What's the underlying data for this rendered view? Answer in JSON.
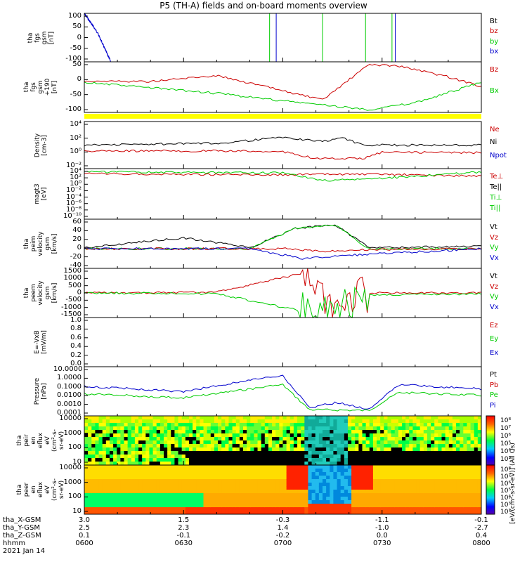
{
  "title": "P5 (TH-A) fields and on-board moments overview",
  "panels": [
    {
      "id": "fgs",
      "ylabel": [
        "tha",
        "fgs",
        "gsm",
        "[nT]"
      ],
      "yticks": [
        "100",
        "50",
        "0",
        "-50",
        "-100"
      ],
      "legend": [
        {
          "label": "Bt",
          "color": "#000000"
        },
        {
          "label": "bz",
          "color": "#cc0000"
        },
        {
          "label": "by",
          "color": "#00cc00"
        },
        {
          "label": "bx",
          "color": "#0000cc"
        }
      ]
    },
    {
      "id": "fgs-recent",
      "ylabel": [
        "tha",
        "fgs",
        "gsm",
        "+190",
        "[nT]"
      ],
      "yticks": [
        "50",
        "0",
        "-50",
        "-100"
      ],
      "legend": [
        {
          "label": "Bz",
          "color": "#cc0000"
        },
        {
          "label": "Bx",
          "color": "#00cc00"
        }
      ]
    },
    {
      "id": "density",
      "ylabel": [
        "Density",
        "[cm-3]"
      ],
      "yticks": [
        "10⁴",
        "10²",
        "10⁰",
        "10⁻²"
      ],
      "legend": [
        {
          "label": "Ne",
          "color": "#cc0000"
        },
        {
          "label": "Ni",
          "color": "#000000"
        },
        {
          "label": "Npot",
          "color": "#0000cc"
        }
      ]
    },
    {
      "id": "temperature",
      "ylabel": [
        "magt3",
        "[eV]"
      ],
      "yticks": [
        "10⁴",
        "10²",
        "10⁰",
        "10⁻²",
        "10⁻⁴",
        "10⁻⁶",
        "10⁻⁸",
        "10⁻¹⁰"
      ],
      "legend": [
        {
          "label": "Te⊥",
          "color": "#cc0000"
        },
        {
          "label": "Te||",
          "color": "#000000"
        },
        {
          "label": "Ti⊥",
          "color": "#00cc00"
        },
        {
          "label": "Ti||",
          "color": "#00cc00"
        }
      ]
    },
    {
      "id": "peim-velocity",
      "ylabel": [
        "tha",
        "peim",
        "velocity",
        "gsm",
        "[km/s]"
      ],
      "yticks": [
        "60",
        "40",
        "20",
        "0",
        "-20",
        "-40"
      ],
      "legend": [
        {
          "label": "Vt",
          "color": "#000000"
        },
        {
          "label": "Vz",
          "color": "#cc0000"
        },
        {
          "label": "Vy",
          "color": "#00cc00"
        },
        {
          "label": "Vx",
          "color": "#0000cc"
        }
      ]
    },
    {
      "id": "peem-velocity",
      "ylabel": [
        "tha",
        "peem",
        "velocity",
        "gsm",
        "[km/s]"
      ],
      "yticks": [
        "1500",
        "1000",
        "500",
        "0",
        "-500",
        "-1000",
        "-1500"
      ],
      "legend": [
        {
          "label": "Vt",
          "color": "#000000"
        },
        {
          "label": "Vz",
          "color": "#cc0000"
        },
        {
          "label": "Vy",
          "color": "#00cc00"
        },
        {
          "label": "Vx",
          "color": "#0000cc"
        }
      ]
    },
    {
      "id": "efield",
      "ylabel": [
        "E=-VxB",
        "[mV/m]"
      ],
      "yticks": [
        "1.0",
        "0.8",
        "0.6",
        "0.4",
        "0.2",
        "0.0"
      ],
      "legend": [
        {
          "label": "Ez",
          "color": "#cc0000"
        },
        {
          "label": "Ey",
          "color": "#00cc00"
        },
        {
          "label": "Ex",
          "color": "#0000cc"
        }
      ]
    },
    {
      "id": "pressure",
      "ylabel": [
        "Pressure",
        "[nPa]"
      ],
      "yticks": [
        "10.0000",
        "1.0000",
        "0.1000",
        "0.0100",
        "0.0010",
        "0.0001"
      ],
      "legend": [
        {
          "label": "Pt",
          "color": "#000000"
        },
        {
          "label": "Pb",
          "color": "#cc0000"
        },
        {
          "label": "Pe",
          "color": "#00cc00"
        },
        {
          "label": "Pi",
          "color": "#0000cc"
        }
      ]
    },
    {
      "id": "peir-eflux",
      "ylabel": [
        "tha",
        "peir",
        "en",
        "eflux",
        "eV",
        "(cm²-s-",
        "sr-eV)"
      ],
      "yticks": [
        "10000",
        "1000",
        "100",
        "10"
      ],
      "legend": []
    },
    {
      "id": "peer-eflux",
      "ylabel": [
        "tha",
        "peer",
        "en",
        "eflux",
        "eV",
        "(cm²-s-",
        "sr-eV)"
      ],
      "yticks": [
        "10000",
        "1000",
        "100",
        "10"
      ],
      "legend": []
    }
  ],
  "colorbar": {
    "label": "[eV/(cm²-s-sr-eV)] (All Qs)",
    "ticks_upper": [
      "10⁸",
      "10⁷",
      "10⁶",
      "10⁵",
      "10⁴",
      "10³"
    ],
    "ticks_lower": [
      "10⁸",
      "10⁷",
      "10⁶",
      "10⁵",
      "10⁴",
      "10³",
      "10²"
    ]
  },
  "ephemeris": {
    "labels": [
      "tha_X-GSM",
      "tha_Y-GSM",
      "tha_Z-GSM",
      "hhmm",
      "2021 Jan 14"
    ],
    "columns": [
      {
        "x": "3.0",
        "y": "2.5",
        "z": "0.1",
        "t": "0600"
      },
      {
        "x": "1.5",
        "y": "2.3",
        "z": "-0.1",
        "t": "0630"
      },
      {
        "x": "-0.3",
        "y": "1.4",
        "z": "-0.2",
        "t": "0700"
      },
      {
        "x": "-1.1",
        "y": "-1.0",
        "z": "0.0",
        "t": "0730"
      },
      {
        "x": "-0.1",
        "y": "-2.7",
        "z": "0.4",
        "t": "0800"
      }
    ]
  },
  "chart_data": {
    "type": "line",
    "title": "P5 (TH-A) fields and on-board moments overview",
    "x_range": [
      "0600",
      "0800"
    ],
    "x_ticks": [
      "0600",
      "0630",
      "0700",
      "0730",
      "0800"
    ],
    "date": "2021 Jan 14",
    "panels": [
      {
        "name": "tha fgs gsm",
        "ylim": [
          -100,
          100
        ],
        "series": [
          {
            "name": "bx",
            "x": [
              "0600",
              "0602",
              "0604",
              "0606",
              "0608"
            ],
            "values": [
              100,
              60,
              20,
              -40,
              -100
            ]
          }
        ]
      },
      {
        "name": "tha fgs gsm +190",
        "ylim": [
          -125,
          60
        ],
        "series": [
          {
            "name": "Bz",
            "x": [
              "0600",
              "0620",
              "0640",
              "0658",
              "0712",
              "0726",
              "0735",
              "0750",
              "0800"
            ],
            "values": [
              -10,
              -12,
              10,
              -40,
              -80,
              50,
              45,
              5,
              -30
            ]
          },
          {
            "name": "Bx",
            "x": [
              "0600",
              "0620",
              "0640",
              "0658",
              "0726",
              "0740",
              "0800"
            ],
            "values": [
              -15,
              -35,
              -55,
              -80,
              -115,
              -90,
              -15
            ]
          }
        ]
      },
      {
        "name": "Density [cm-3]",
        "yscale": "log",
        "ylim": [
          0.001,
          100000
        ],
        "series": [
          {
            "name": "Ni",
            "x": [
              "0600",
              "0640",
              "0700",
              "0712",
              "0718",
              "0724",
              "0800"
            ],
            "values": [
              10,
              20,
              200,
              40,
              200,
              10,
              10
            ]
          },
          {
            "name": "Ne",
            "x": [
              "0600",
              "0640",
              "0700",
              "0710",
              "0724",
              "0730",
              "0800"
            ],
            "values": [
              1,
              1,
              0.8,
              0.05,
              0.05,
              0.6,
              0.5
            ]
          }
        ]
      },
      {
        "name": "magt3 [eV]",
        "yscale": "log",
        "ylim": [
          1e-10,
          100000
        ],
        "series": [
          {
            "name": "Te⊥",
            "x": [
              "0600",
              "0700",
              "0712",
              "0730",
              "0800"
            ],
            "values": [
              3000,
              1500,
              2000,
              2000,
              600
            ]
          },
          {
            "name": "Ti⊥",
            "x": [
              "0600",
              "0700",
              "0712",
              "0728",
              "0800"
            ],
            "values": [
              10000,
              5000,
              30,
              100,
              10000
            ]
          }
        ]
      },
      {
        "name": "tha peim velocity gsm [km/s]",
        "ylim": [
          -40,
          60
        ],
        "series": [
          {
            "name": "Vt",
            "x": [
              "0600",
              "0630",
              "0650",
              "0704",
              "0716",
              "0726",
              "0800"
            ],
            "values": [
              2,
              22,
              2,
              42,
              48,
              2,
              5
            ]
          },
          {
            "name": "Vy",
            "x": [
              "0600",
              "0650",
              "0704",
              "0716",
              "0726",
              "0800"
            ],
            "values": [
              0,
              0,
              42,
              48,
              0,
              0
            ]
          },
          {
            "name": "Vz",
            "x": [
              "0600",
              "0650",
              "0700",
              "0712",
              "0726",
              "0800"
            ],
            "values": [
              0,
              0,
              0,
              -5,
              -2,
              0
            ]
          },
          {
            "name": "Vx",
            "x": [
              "0600",
              "0650",
              "0706",
              "0724",
              "0800"
            ],
            "values": [
              0,
              0,
              -20,
              -12,
              0
            ]
          }
        ]
      },
      {
        "name": "tha peem velocity gsm [km/s]",
        "ylim": [
          -1500,
          1500
        ],
        "series": [
          {
            "name": "Vz",
            "x": [
              "0600",
              "0640",
              "0706",
              "0716",
              "0726",
              "0800"
            ],
            "values": [
              0,
              50,
              1200,
              -1200,
              0,
              0
            ]
          },
          {
            "name": "Vy",
            "x": [
              "0600",
              "0640",
              "0706",
              "0716",
              "0726",
              "0800"
            ],
            "values": [
              0,
              -50,
              -1100,
              -1300,
              -150,
              -50
            ]
          }
        ]
      },
      {
        "name": "E=-VxB [mV/m]",
        "ylim": [
          0,
          1
        ],
        "series": []
      },
      {
        "name": "Pressure [nPa]",
        "yscale": "log",
        "ylim": [
          0.0001,
          30
        ],
        "series": [
          {
            "name": "Pi",
            "x": [
              "0600",
              "0630",
              "0650",
              "0700",
              "0708",
              "0716",
              "0726",
              "0735",
              "0800"
            ],
            "values": [
              0.2,
              0.05,
              1,
              3,
              0.0008,
              0.003,
              0.0006,
              0.3,
              0.1
            ]
          },
          {
            "name": "Pe",
            "x": [
              "0600",
              "0630",
              "0650",
              "0700",
              "0708",
              "0726",
              "0735",
              "0800"
            ],
            "values": [
              0.03,
              0.01,
              0.1,
              0.3,
              0.0005,
              0.0004,
              0.04,
              0.02
            ]
          }
        ]
      },
      {
        "name": "tha peir en eflux",
        "type": "heatmap",
        "yscale": "log",
        "ylim": [
          8,
          30000
        ]
      },
      {
        "name": "tha peer en eflux",
        "type": "heatmap",
        "yscale": "log",
        "ylim": [
          8,
          30000
        ]
      }
    ]
  }
}
